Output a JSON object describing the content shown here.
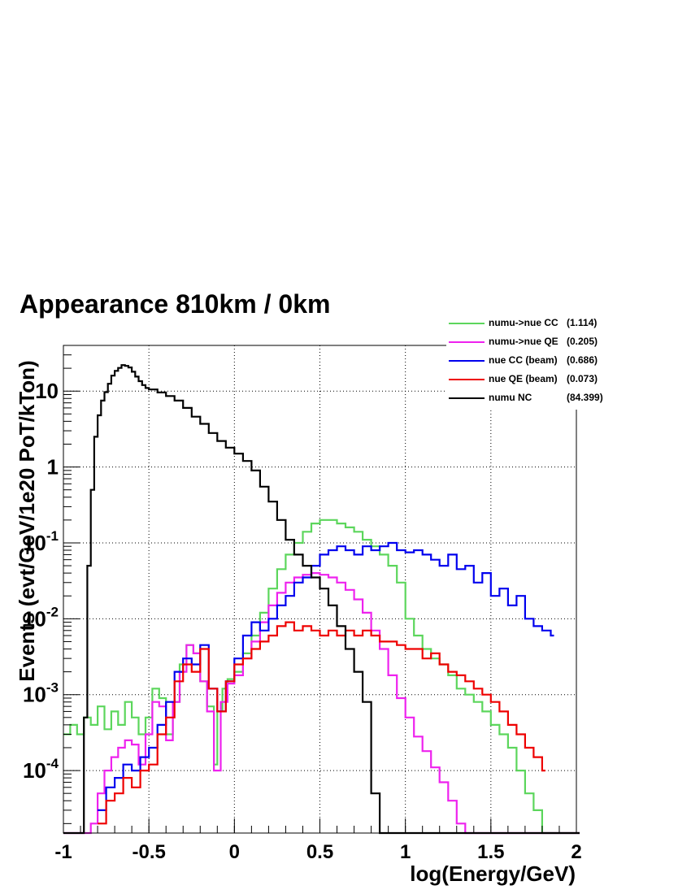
{
  "title": "Appearance 810km / 0km",
  "chart_data": {
    "type": "line",
    "title": "Appearance 810km / 0km",
    "xlabel": "log(Energy/GeV)",
    "ylabel": "Events (evt/GeV/1e20 PoT/kTon)",
    "xlim": [
      -1,
      2
    ],
    "ylim": [
      1.5e-05,
      40
    ],
    "yscale": "log",
    "grid": true,
    "legend_position": "top-right",
    "x_ticks": [
      {
        "value": -1,
        "label": "-1"
      },
      {
        "value": -0.5,
        "label": "-0.5"
      },
      {
        "value": 0,
        "label": "0"
      },
      {
        "value": 0.5,
        "label": "0.5"
      },
      {
        "value": 1,
        "label": "1"
      },
      {
        "value": 1.5,
        "label": "1.5"
      },
      {
        "value": 2,
        "label": "2"
      }
    ],
    "y_ticks": [
      {
        "value": 0.0001,
        "base": "10",
        "exp": "-4"
      },
      {
        "value": 0.001,
        "base": "10",
        "exp": "-3"
      },
      {
        "value": 0.01,
        "base": "10",
        "exp": "-2"
      },
      {
        "value": 0.1,
        "base": "10",
        "exp": "-1"
      },
      {
        "value": 1,
        "base": "1",
        "exp": ""
      },
      {
        "value": 10,
        "base": "10",
        "exp": ""
      }
    ],
    "series": [
      {
        "name": "numu->nue CC",
        "total": "(1.114)",
        "color": "#5cd65c",
        "x": [
          -1.0,
          -0.96,
          -0.92,
          -0.88,
          -0.84,
          -0.8,
          -0.76,
          -0.72,
          -0.68,
          -0.64,
          -0.6,
          -0.56,
          -0.52,
          -0.48,
          -0.44,
          -0.4,
          -0.36,
          -0.32,
          -0.28,
          -0.24,
          -0.2,
          -0.16,
          -0.12,
          -0.1,
          -0.07,
          -0.04,
          0.0,
          0.05,
          0.1,
          0.15,
          0.2,
          0.25,
          0.3,
          0.35,
          0.4,
          0.45,
          0.5,
          0.55,
          0.6,
          0.65,
          0.7,
          0.75,
          0.8,
          0.85,
          0.9,
          0.95,
          1.0,
          1.05,
          1.1,
          1.15,
          1.2,
          1.25,
          1.3,
          1.35,
          1.4,
          1.45,
          1.5,
          1.55,
          1.6,
          1.65,
          1.7,
          1.75,
          1.8,
          2.0
        ],
        "y": [
          0.0003,
          0.0004,
          0.0003,
          0.0005,
          0.0004,
          0.0007,
          0.00035,
          0.0006,
          0.0004,
          0.0008,
          0.0005,
          0.0003,
          0.0005,
          0.0012,
          0.0009,
          0.0003,
          0.0008,
          0.0025,
          0.0045,
          0.0035,
          0.0015,
          0.0007,
          0.00012,
          0.0006,
          0.0012,
          0.0016,
          0.002,
          0.0035,
          0.006,
          0.012,
          0.025,
          0.045,
          0.07,
          0.1,
          0.14,
          0.18,
          0.2,
          0.2,
          0.18,
          0.16,
          0.14,
          0.11,
          0.09,
          0.07,
          0.05,
          0.03,
          0.01,
          0.006,
          0.004,
          0.003,
          0.0025,
          0.0018,
          0.0012,
          0.001,
          0.0008,
          0.0006,
          0.0004,
          0.0003,
          0.0002,
          0.0001,
          5e-05,
          3e-05,
          1.5e-05,
          1.5e-05
        ]
      },
      {
        "name": "numu->nue QE",
        "total": "(0.205)",
        "color": "#ee22ee",
        "x": [
          -1.0,
          -0.9,
          -0.84,
          -0.8,
          -0.76,
          -0.72,
          -0.68,
          -0.64,
          -0.6,
          -0.56,
          -0.52,
          -0.48,
          -0.44,
          -0.4,
          -0.36,
          -0.32,
          -0.28,
          -0.24,
          -0.2,
          -0.16,
          -0.12,
          -0.08,
          -0.04,
          0.0,
          0.05,
          0.1,
          0.15,
          0.2,
          0.25,
          0.3,
          0.35,
          0.4,
          0.45,
          0.5,
          0.55,
          0.6,
          0.65,
          0.7,
          0.75,
          0.8,
          0.85,
          0.9,
          0.95,
          1.0,
          1.05,
          1.1,
          1.15,
          1.2,
          1.25,
          1.3,
          1.35,
          1.4,
          2.0
        ],
        "y": [
          1.5e-05,
          1.5e-05,
          2e-05,
          5e-05,
          0.0001,
          0.00015,
          0.0002,
          0.00025,
          0.00022,
          0.00012,
          0.0003,
          0.0008,
          0.0007,
          0.00025,
          0.0008,
          0.002,
          0.0045,
          0.0035,
          0.0015,
          0.0006,
          0.0001,
          0.0008,
          0.0014,
          0.0018,
          0.003,
          0.005,
          0.009,
          0.015,
          0.022,
          0.03,
          0.035,
          0.038,
          0.04,
          0.038,
          0.035,
          0.03,
          0.024,
          0.018,
          0.012,
          0.007,
          0.004,
          0.0018,
          0.0009,
          0.0005,
          0.00028,
          0.00018,
          0.00011,
          7e-05,
          4e-05,
          2e-05,
          1.5e-05,
          1.5e-05,
          1.5e-05
        ]
      },
      {
        "name": "nue CC (beam)",
        "total": "(0.686)",
        "color": "#0000ee",
        "x": [
          -0.8,
          -0.75,
          -0.7,
          -0.65,
          -0.6,
          -0.55,
          -0.5,
          -0.45,
          -0.4,
          -0.35,
          -0.3,
          -0.25,
          -0.2,
          -0.15,
          -0.1,
          -0.05,
          0.0,
          0.05,
          0.1,
          0.15,
          0.2,
          0.25,
          0.3,
          0.35,
          0.4,
          0.45,
          0.5,
          0.55,
          0.6,
          0.65,
          0.7,
          0.75,
          0.8,
          0.85,
          0.9,
          0.95,
          1.0,
          1.05,
          1.1,
          1.15,
          1.2,
          1.25,
          1.3,
          1.35,
          1.4,
          1.45,
          1.5,
          1.55,
          1.6,
          1.65,
          1.7,
          1.75,
          1.8,
          1.85
        ],
        "y": [
          3e-05,
          6e-05,
          8e-05,
          0.00012,
          0.0001,
          0.00015,
          0.0002,
          0.0004,
          0.0008,
          0.002,
          0.003,
          0.0025,
          0.0045,
          0.0012,
          0.0006,
          0.0015,
          0.003,
          0.006,
          0.009,
          0.007,
          0.01,
          0.015,
          0.02,
          0.03,
          0.035,
          0.05,
          0.07,
          0.08,
          0.09,
          0.08,
          0.07,
          0.09,
          0.08,
          0.09,
          0.1,
          0.08,
          0.075,
          0.08,
          0.07,
          0.06,
          0.05,
          0.07,
          0.045,
          0.05,
          0.03,
          0.04,
          0.02,
          0.025,
          0.015,
          0.02,
          0.01,
          0.008,
          0.007,
          0.006
        ]
      },
      {
        "name": "nue QE (beam)",
        "total": "(0.073)",
        "color": "#ee0000",
        "x": [
          -0.8,
          -0.75,
          -0.7,
          -0.65,
          -0.6,
          -0.55,
          -0.5,
          -0.45,
          -0.4,
          -0.35,
          -0.3,
          -0.25,
          -0.2,
          -0.15,
          -0.1,
          -0.05,
          0.0,
          0.05,
          0.1,
          0.15,
          0.2,
          0.25,
          0.3,
          0.35,
          0.4,
          0.45,
          0.5,
          0.55,
          0.6,
          0.65,
          0.7,
          0.75,
          0.8,
          0.85,
          0.9,
          0.95,
          1.0,
          1.05,
          1.1,
          1.15,
          1.2,
          1.25,
          1.3,
          1.35,
          1.4,
          1.45,
          1.5,
          1.55,
          1.6,
          1.65,
          1.7,
          1.75,
          1.8
        ],
        "y": [
          2e-05,
          4e-05,
          5e-05,
          8e-05,
          6e-05,
          0.0001,
          0.00012,
          0.0003,
          0.0005,
          0.0015,
          0.0025,
          0.002,
          0.004,
          0.0012,
          0.0006,
          0.0015,
          0.0025,
          0.003,
          0.004,
          0.005,
          0.006,
          0.008,
          0.009,
          0.007,
          0.008,
          0.007,
          0.006,
          0.007,
          0.006,
          0.007,
          0.006,
          0.007,
          0.006,
          0.005,
          0.005,
          0.0045,
          0.004,
          0.004,
          0.003,
          0.0035,
          0.0025,
          0.002,
          0.0018,
          0.0015,
          0.0012,
          0.001,
          0.0008,
          0.0006,
          0.0004,
          0.0003,
          0.0002,
          0.00015,
          0.0001
        ]
      },
      {
        "name": "numu NC",
        "total": "(84.399)",
        "color": "#000000",
        "x": [
          -1.0,
          -0.9,
          -0.88,
          -0.86,
          -0.84,
          -0.82,
          -0.8,
          -0.78,
          -0.76,
          -0.74,
          -0.72,
          -0.7,
          -0.68,
          -0.66,
          -0.64,
          -0.62,
          -0.6,
          -0.58,
          -0.56,
          -0.54,
          -0.52,
          -0.5,
          -0.45,
          -0.4,
          -0.35,
          -0.3,
          -0.25,
          -0.2,
          -0.15,
          -0.1,
          -0.05,
          0.0,
          0.05,
          0.1,
          0.15,
          0.2,
          0.25,
          0.3,
          0.35,
          0.4,
          0.45,
          0.5,
          0.55,
          0.6,
          0.65,
          0.7,
          0.75,
          0.8,
          0.85,
          2.0
        ],
        "y": [
          1.5e-05,
          1.5e-05,
          0.0005,
          0.05,
          0.5,
          2.5,
          4.8,
          7.5,
          9.7,
          12.5,
          16,
          18.5,
          20.2,
          22,
          21.5,
          20.5,
          18,
          15.5,
          13.5,
          12,
          11,
          10.5,
          9.6,
          8.6,
          7.5,
          6,
          4.6,
          3.7,
          2.8,
          2.2,
          1.8,
          1.5,
          1.2,
          0.9,
          0.55,
          0.35,
          0.2,
          0.11,
          0.07,
          0.05,
          0.035,
          0.025,
          0.015,
          0.008,
          0.004,
          0.002,
          0.0008,
          5e-05,
          1.5e-05,
          1.5e-05
        ]
      }
    ]
  }
}
